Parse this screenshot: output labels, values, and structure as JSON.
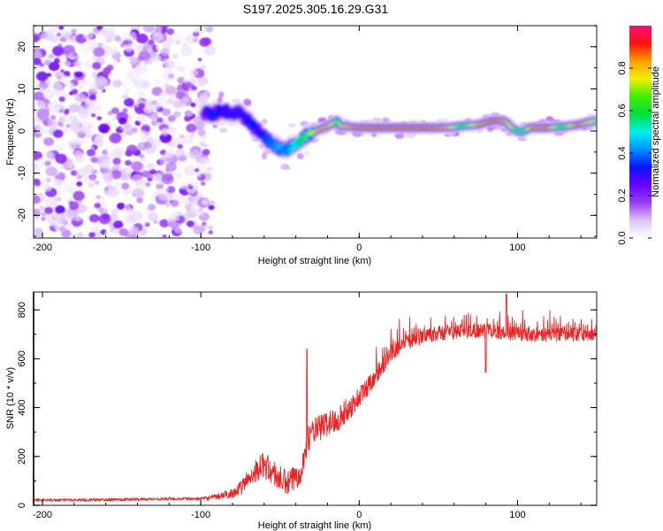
{
  "title": "S197.2025.305.16.29.G31",
  "chart_data": [
    {
      "type": "heatmap",
      "title": "S197.2025.305.16.29.G31",
      "xlabel": "Height of straight line (km)",
      "ylabel": "Frequency (Hz)",
      "xlim": [
        -205.6,
        150
      ],
      "ylim": [
        -25.4,
        25
      ],
      "xticks": [
        -200,
        -100,
        0,
        100
      ],
      "xtick_labels": [
        "-200",
        "-100",
        "0",
        "100"
      ],
      "yticks": [
        -20,
        -10,
        0,
        10,
        20
      ],
      "ytick_labels": [
        "-20",
        "-10",
        "0",
        "10",
        "20"
      ],
      "colorbar": {
        "label": "Normalized spectral amplitude",
        "range": [
          0,
          1
        ],
        "ticks": [
          0.0,
          0.2,
          0.4,
          0.6,
          0.8
        ],
        "tick_labels": [
          "0.0",
          "0.2",
          "0.4",
          "0.6",
          "0.8"
        ],
        "colormap": [
          "#ffffff",
          "#dcc4f5",
          "#9a3cf0",
          "#6a00ff",
          "#0a10ff",
          "#0090ff",
          "#00f0f0",
          "#00e040",
          "#40f000",
          "#f0f000",
          "#ffa000",
          "#ff1010",
          "#f0107a"
        ]
      },
      "noise_region": {
        "x_range": [
          -205.6,
          -90
        ],
        "y_range": [
          -25,
          25
        ],
        "amplitude_range": [
          0.02,
          0.25
        ]
      },
      "ridge": {
        "description": "dominant frequency track",
        "points": [
          {
            "x": -98,
            "y": 4.5,
            "amp": 0.25
          },
          {
            "x": -92,
            "y": 4.0,
            "amp": 0.35
          },
          {
            "x": -86,
            "y": 5.0,
            "amp": 0.3
          },
          {
            "x": -80,
            "y": 3.5,
            "amp": 0.3
          },
          {
            "x": -76,
            "y": 4.5,
            "amp": 0.3
          },
          {
            "x": -72,
            "y": 3.0,
            "amp": 0.3
          },
          {
            "x": -68,
            "y": 1.5,
            "amp": 0.35
          },
          {
            "x": -64,
            "y": 0.0,
            "amp": 0.3
          },
          {
            "x": -60,
            "y": -1.5,
            "amp": 0.35
          },
          {
            "x": -55,
            "y": -3.0,
            "amp": 0.4
          },
          {
            "x": -50,
            "y": -4.0,
            "amp": 0.45
          },
          {
            "x": -46,
            "y": -4.5,
            "amp": 0.4
          },
          {
            "x": -42,
            "y": -3.5,
            "amp": 0.5
          },
          {
            "x": -38,
            "y": -2.5,
            "amp": 0.55
          },
          {
            "x": -34,
            "y": -1.5,
            "amp": 0.65
          },
          {
            "x": -30,
            "y": -0.5,
            "amp": 0.75
          },
          {
            "x": -26,
            "y": 0.3,
            "amp": 0.85
          },
          {
            "x": -22,
            "y": 0.8,
            "amp": 0.85
          },
          {
            "x": -18,
            "y": 1.5,
            "amp": 0.8
          },
          {
            "x": -14,
            "y": 2.5,
            "amp": 0.6
          },
          {
            "x": -12,
            "y": 1.2,
            "amp": 0.8
          },
          {
            "x": -6,
            "y": 1.0,
            "amp": 0.85
          },
          {
            "x": 0,
            "y": 0.8,
            "amp": 0.9
          },
          {
            "x": 20,
            "y": 0.8,
            "amp": 0.95
          },
          {
            "x": 40,
            "y": 0.8,
            "amp": 0.95
          },
          {
            "x": 55,
            "y": 0.8,
            "amp": 0.85
          },
          {
            "x": 65,
            "y": 1.2,
            "amp": 0.6
          },
          {
            "x": 75,
            "y": 1.5,
            "amp": 0.85
          },
          {
            "x": 85,
            "y": 2.5,
            "amp": 0.9
          },
          {
            "x": 92,
            "y": 2.3,
            "amp": 0.85
          },
          {
            "x": 97,
            "y": 0.5,
            "amp": 0.7
          },
          {
            "x": 102,
            "y": -0.3,
            "amp": 0.5
          },
          {
            "x": 108,
            "y": 0.8,
            "amp": 0.85
          },
          {
            "x": 118,
            "y": 0.8,
            "amp": 0.9
          },
          {
            "x": 128,
            "y": 1.0,
            "amp": 0.6
          },
          {
            "x": 138,
            "y": 1.5,
            "amp": 0.9
          },
          {
            "x": 150,
            "y": 2.5,
            "amp": 0.7
          }
        ]
      }
    },
    {
      "type": "line",
      "xlabel": "Height of straight line (km)",
      "ylabel": "SNR (10 * v/v)",
      "xlim": [
        -205.6,
        150
      ],
      "ylim": [
        0,
        873
      ],
      "xticks": [
        -200,
        -100,
        0,
        100
      ],
      "xtick_labels": [
        "-200",
        "-100",
        "0",
        "100"
      ],
      "yticks": [
        0,
        200,
        400,
        600,
        800
      ],
      "ytick_labels": [
        "0",
        "200",
        "400",
        "600",
        "800"
      ],
      "color": "#ee2222",
      "series": [
        {
          "name": "SNR",
          "envelope": {
            "x": [
              -205.6,
              -180,
              -150,
              -120,
              -100,
              -90,
              -80,
              -75,
              -70,
              -65,
              -60,
              -55,
              -50,
              -45,
              -40,
              -36,
              -34,
              -32,
              -30,
              -25,
              -20,
              -15,
              -10,
              -5,
              0,
              5,
              10,
              15,
              20,
              25,
              30,
              40,
              50,
              60,
              70,
              80,
              90,
              100,
              110,
              120,
              130,
              140,
              150
            ],
            "y": [
              20,
              20,
              22,
              25,
              25,
              30,
              45,
              60,
              100,
              130,
              150,
              120,
              90,
              70,
              100,
              140,
              200,
              260,
              280,
              300,
              320,
              330,
              360,
              390,
              430,
              470,
              520,
              560,
              610,
              640,
              660,
              680,
              695,
              700,
              705,
              705,
              700,
              695,
              690,
              690,
              690,
              690,
              690
            ]
          },
          "noise_amplitude": {
            "x": [
              -205.6,
              -100,
              -80,
              -60,
              -40,
              -20,
              0,
              20,
              40,
              80,
              150
            ],
            "y": [
              12,
              12,
              40,
              110,
              110,
              110,
              90,
              70,
              60,
              60,
              55
            ]
          },
          "notable_peaks": [
            {
              "x": -33,
              "y": 640
            },
            {
              "x": 93,
              "y": 865
            },
            {
              "x": 80,
              "y": 545
            }
          ]
        }
      ]
    }
  ]
}
